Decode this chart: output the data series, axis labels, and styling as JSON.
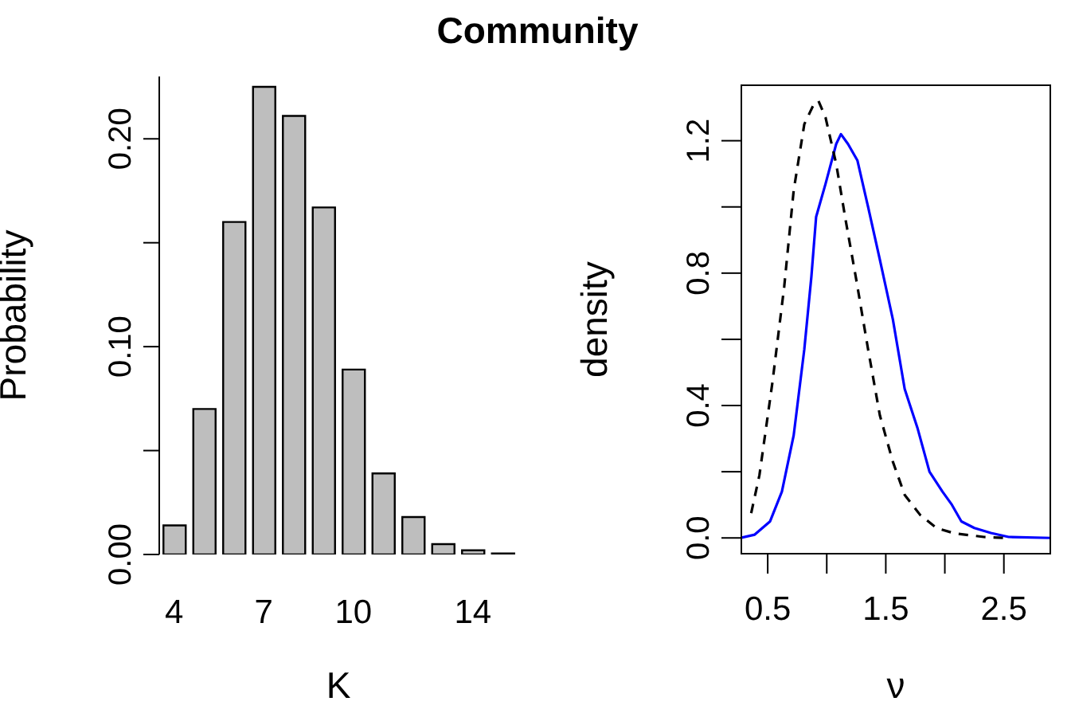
{
  "chart_data": [
    {
      "type": "bar",
      "title": "Community",
      "xlabel": "K",
      "ylabel": "Probability",
      "color": "#bebebe",
      "categories": [
        "4",
        null,
        null,
        "7",
        null,
        null,
        "10",
        null,
        null,
        null,
        "14",
        null
      ],
      "values": [
        0.014,
        0.07,
        0.16,
        0.225,
        0.211,
        0.167,
        0.089,
        0.039,
        0.018,
        0.005,
        0.002,
        0.0005
      ],
      "ylim": [
        0,
        0.23
      ],
      "yticks": [
        {
          "value": 0,
          "label": "0.00"
        },
        {
          "value": 0.05,
          "label": null
        },
        {
          "value": 0.1,
          "label": "0.10"
        },
        {
          "value": 0.15,
          "label": null
        },
        {
          "value": 0.2,
          "label": "0.20"
        }
      ]
    },
    {
      "type": "line",
      "xlabel": "ν",
      "ylabel": "density",
      "marker": "none",
      "xlim": [
        0.27,
        2.9
      ],
      "xticks": [
        0.5,
        {
          "value": 1,
          "label": null
        },
        1.5,
        {
          "value": 2,
          "label": null
        },
        2.5
      ],
      "ylim": [
        -0.05,
        1.37
      ],
      "yticks": [
        {
          "value": 0,
          "label": "0.0"
        },
        {
          "value": 0.2,
          "label": null
        },
        {
          "value": 0.4,
          "label": "0.4"
        },
        {
          "value": 0.6,
          "label": null
        },
        {
          "value": 0.8,
          "label": "0.8"
        },
        {
          "value": 1,
          "label": null
        },
        {
          "value": 1.2,
          "label": "1.2"
        }
      ],
      "series": [
        {
          "color": "#0000ff",
          "line_style": "solid",
          "x": [
            0.27,
            0.39,
            0.52,
            0.62,
            0.72,
            0.81,
            0.87,
            0.91,
            0.99,
            1.08,
            1.12,
            1.18,
            1.26,
            1.35,
            1.45,
            1.56,
            1.66,
            1.77,
            1.87,
            1.98,
            2.06,
            2.14,
            2.25,
            2.39,
            2.54,
            2.9
          ],
          "values": [
            0,
            0.01,
            0.05,
            0.14,
            0.31,
            0.57,
            0.79,
            0.97,
            1.07,
            1.19,
            1.22,
            1.19,
            1.14,
            1,
            0.84,
            0.66,
            0.45,
            0.33,
            0.2,
            0.14,
            0.1,
            0.05,
            0.03,
            0.015,
            0.003,
            0
          ]
        },
        {
          "color": "#000000",
          "line_style": "dashed",
          "x": [
            0.36,
            0.43,
            0.54,
            0.64,
            0.72,
            0.81,
            0.89,
            0.93,
            0.99,
            1.08,
            1.16,
            1.25,
            1.35,
            1.45,
            1.56,
            1.66,
            1.79,
            1.93,
            2.08,
            2.33,
            2.5
          ],
          "values": [
            0.075,
            0.19,
            0.47,
            0.76,
            1.05,
            1.25,
            1.31,
            1.32,
            1.27,
            1.13,
            0.96,
            0.78,
            0.57,
            0.37,
            0.23,
            0.13,
            0.07,
            0.03,
            0.014,
            0.003,
            0
          ]
        }
      ]
    }
  ]
}
